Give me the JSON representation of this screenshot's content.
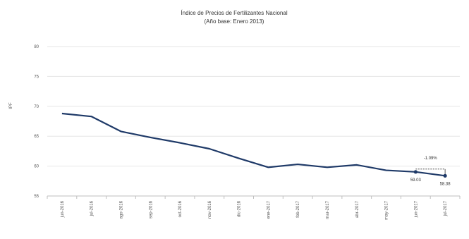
{
  "chart_data": {
    "type": "line",
    "title": "Índice de Precios de Fertilizantes Nacional",
    "subtitle": "(Año base: Enero 2013)",
    "ylabel": "IPF",
    "xlabel": "",
    "ylim": [
      55,
      80
    ],
    "yticks": [
      55,
      60,
      65,
      70,
      75,
      80
    ],
    "grid": true,
    "categories": [
      "jun-2016",
      "jul-2016",
      "ago-2016",
      "sep-2016",
      "oct-2016",
      "nov-2016",
      "dic-2016",
      "ene-2017",
      "feb-2017",
      "mar-2017",
      "abr-2017",
      "may-2017",
      "jun-2017",
      "jul-2017"
    ],
    "series": [
      {
        "name": "",
        "color": "#1f3a68",
        "values": [
          68.8,
          68.3,
          65.8,
          64.8,
          63.9,
          62.9,
          61.3,
          59.8,
          60.3,
          59.8,
          60.2,
          59.3,
          59.03,
          58.38
        ]
      }
    ],
    "annotations": {
      "change_label": "-1.09%",
      "point_labels": [
        {
          "index": 12,
          "text": "59.03"
        },
        {
          "index": 13,
          "text": "58.38"
        }
      ]
    }
  }
}
